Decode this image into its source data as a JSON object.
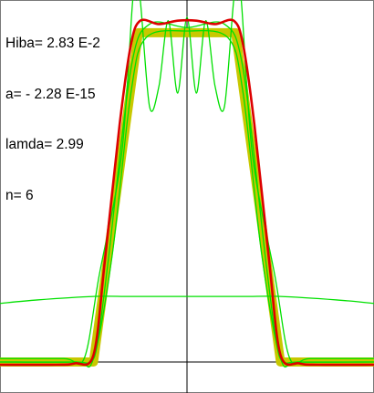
{
  "readout": {
    "error_line": "Hiba= 2.83 E-2",
    "a_line": "a= - 2.28 E-15",
    "lambda_line": "lamda= 2.99",
    "n_line": "n= 6"
  },
  "colors": {
    "target": "#c8c800",
    "approximations": "#00e000",
    "best_fit": "#dd0000",
    "axes": "#000000",
    "background": "#ffffff",
    "frame": "#7a7a7a"
  },
  "chart_data": {
    "type": "line",
    "title": "",
    "xlabel": "",
    "ylabel": "",
    "xlim": [
      -1.0,
      1.0
    ],
    "ylim": [
      -0.09,
      1.05
    ],
    "grid": false,
    "legend": "none",
    "series": [
      {
        "role": "target",
        "color": "#c8c800",
        "x": [
          -1.0,
          -0.5,
          -0.26,
          0.26,
          0.5,
          1.0
        ],
        "y": [
          0.0,
          0.0,
          0.955,
          0.955,
          0.0,
          0.0
        ]
      },
      {
        "role": "approximation",
        "color": "#00e000",
        "x": [
          -1.0,
          -0.8,
          -0.5,
          -0.3,
          0.0,
          0.3,
          0.5,
          0.8,
          1.0
        ],
        "y": [
          0.17,
          0.18,
          0.19,
          0.19,
          0.19,
          0.19,
          0.19,
          0.18,
          0.17
        ]
      },
      {
        "role": "approximation",
        "color": "#00e000",
        "x": [
          -1.0,
          -0.6,
          -0.5,
          -0.4,
          -0.3,
          -0.22,
          0.0,
          0.22,
          0.3,
          0.4,
          0.5,
          0.6,
          1.0
        ],
        "y": [
          0.0,
          0.0,
          0.01,
          0.31,
          0.78,
          0.94,
          0.96,
          0.94,
          0.78,
          0.31,
          0.01,
          0.0,
          0.0
        ]
      },
      {
        "role": "approximation",
        "color": "#00e000",
        "x": [
          -1.0,
          -0.6,
          -0.52,
          -0.48,
          -0.42,
          -0.3,
          -0.2,
          0.0,
          0.2,
          0.3,
          0.42,
          0.48,
          0.52,
          0.6,
          1.0
        ],
        "y": [
          0.0,
          0.0,
          0.0,
          0.05,
          0.3,
          0.85,
          0.98,
          0.97,
          0.98,
          0.85,
          0.3,
          0.05,
          0.0,
          0.0,
          0.0
        ]
      },
      {
        "role": "approximation",
        "color": "#00e000",
        "x": [
          -1.0,
          -0.66,
          -0.55,
          -0.47,
          -0.35,
          -0.29,
          -0.27,
          -0.25,
          -0.2,
          -0.15,
          -0.1,
          -0.05,
          0.0,
          0.05,
          0.1,
          0.15,
          0.2,
          0.25,
          0.27,
          0.29,
          0.35,
          0.47,
          0.55,
          0.66,
          1.0
        ],
        "y": [
          0.01,
          0.01,
          0.01,
          0.25,
          0.6,
          1.05,
          1.05,
          1.05,
          0.74,
          0.8,
          0.99,
          0.78,
          1.0,
          0.78,
          0.99,
          0.8,
          0.74,
          1.05,
          1.05,
          1.05,
          0.6,
          0.25,
          0.01,
          0.01,
          0.01
        ]
      },
      {
        "role": "best-fit",
        "color": "#dd0000",
        "x": [
          -1.0,
          -0.7,
          -0.6,
          -0.5,
          -0.44,
          -0.36,
          -0.3,
          -0.25,
          -0.15,
          -0.05,
          0.05,
          0.15,
          0.25,
          0.3,
          0.36,
          0.44,
          0.5,
          0.6,
          0.7,
          1.0
        ],
        "y": [
          -0.008,
          -0.008,
          -0.004,
          0.02,
          0.29,
          0.69,
          0.92,
          0.99,
          0.98,
          0.99,
          0.99,
          0.98,
          0.99,
          0.92,
          0.69,
          0.29,
          0.02,
          -0.004,
          -0.008,
          -0.008
        ]
      }
    ]
  }
}
